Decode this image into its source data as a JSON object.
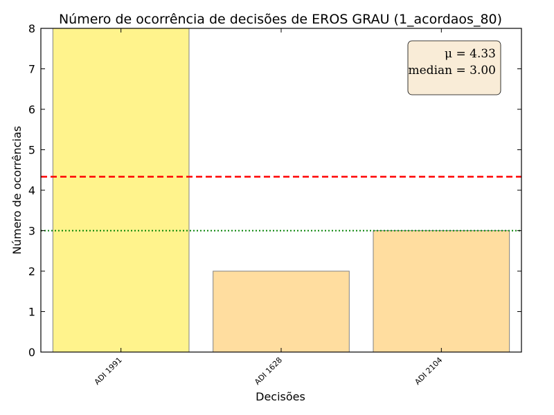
{
  "chart_data": {
    "type": "bar",
    "title": "Número de ocorrência de decisões de EROS GRAU (1_acordaos_80)",
    "xlabel": "Decisões",
    "ylabel": "Número de ocorrências",
    "categories": [
      "ADI 1991",
      "ADI 1628",
      "ADI 2104"
    ],
    "values": [
      8,
      2,
      3
    ],
    "bar_colors": [
      "#fff38c",
      "#ffdd9f",
      "#ffdd9f"
    ],
    "bar_edge_color": "#808080",
    "ylim": [
      0,
      8
    ],
    "yticks": [
      "0",
      "1",
      "2",
      "3",
      "4",
      "5",
      "6",
      "7",
      "8"
    ],
    "grid": false,
    "mean": 4.333,
    "median": 3.0,
    "mean_line": {
      "color": "#ff0000",
      "style": "dashed"
    },
    "median_line": {
      "color": "#008000",
      "style": "dotted"
    },
    "stats_box": {
      "mean_text": "μ = 4.33",
      "median_text": "median = 3.00",
      "placement": "top-right",
      "facecolor": "#f9ecd7"
    }
  }
}
